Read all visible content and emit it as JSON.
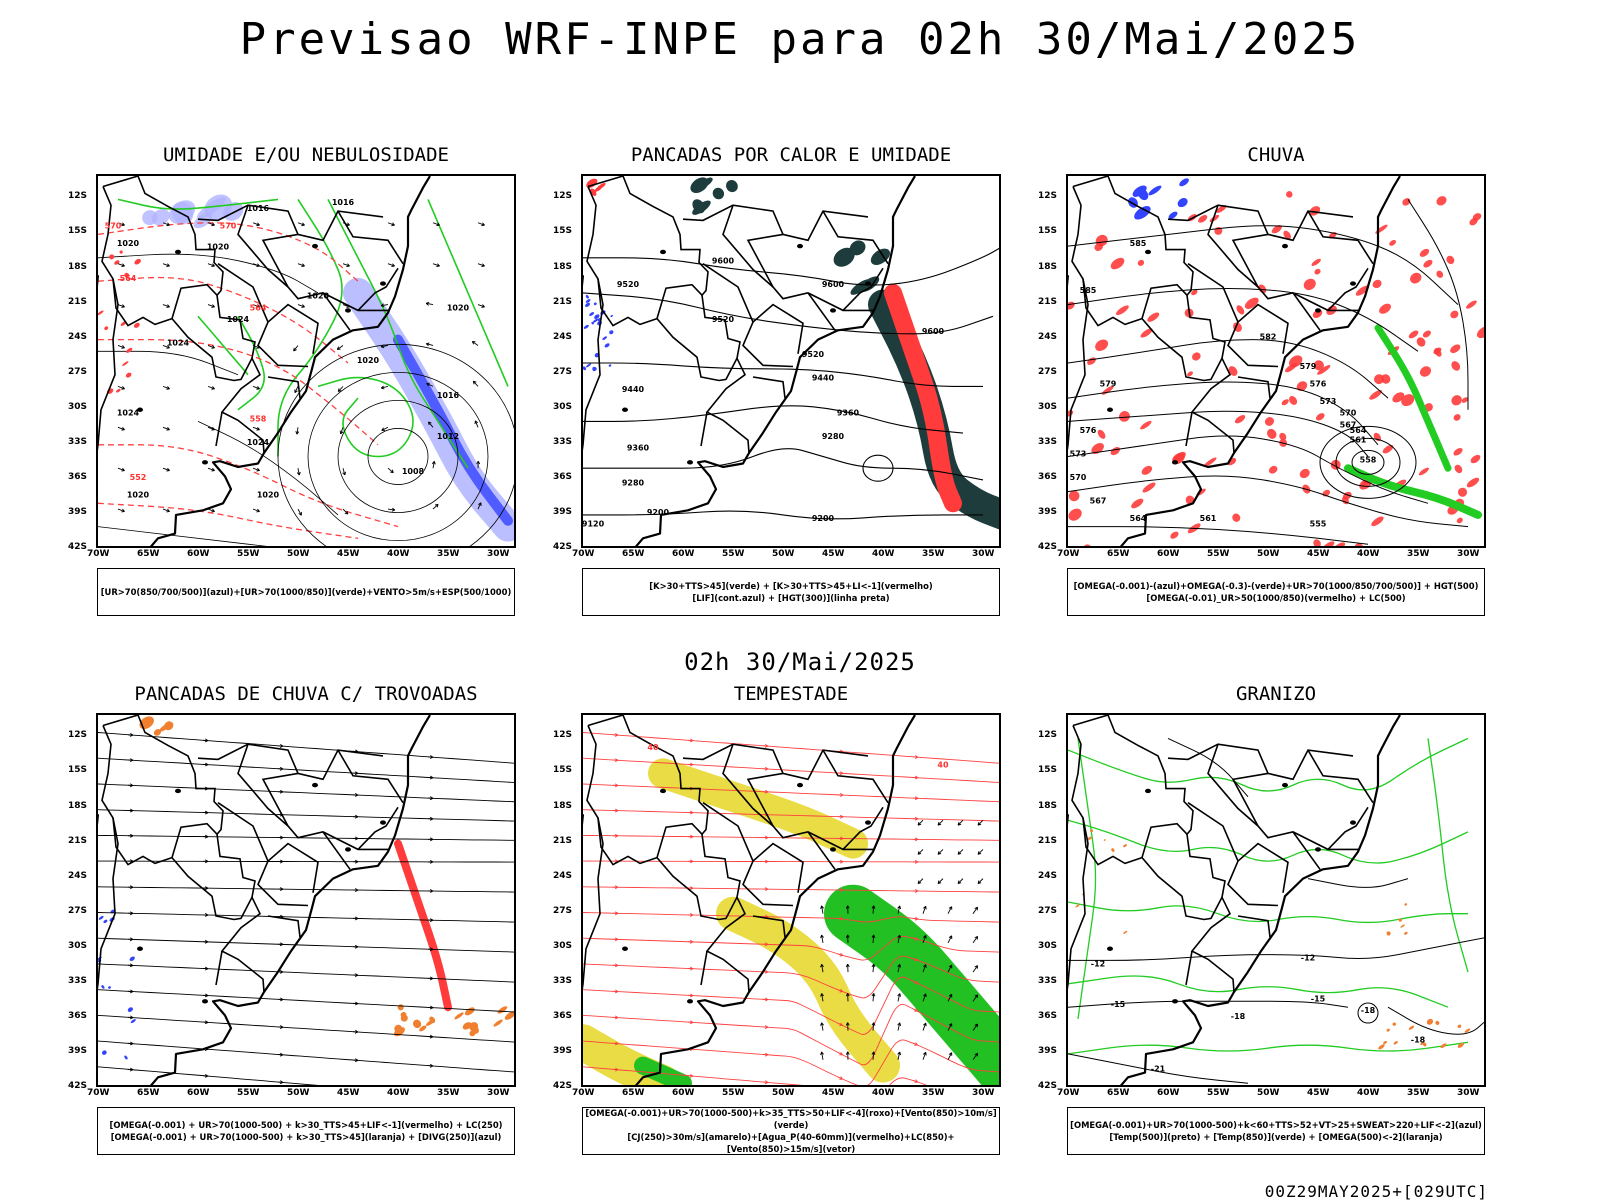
{
  "title": "Previsao WRF-INPE  para 02h 30/Mai/2025",
  "subtitle": "02h 30/Mai/2025",
  "footer": "00Z29MAY2025+[029UTC]",
  "axes": {
    "lat_labels": [
      "12S",
      "15S",
      "18S",
      "21S",
      "24S",
      "27S",
      "30S",
      "33S",
      "36S",
      "39S",
      "42S"
    ],
    "lon_labels": [
      "70W",
      "65W",
      "60W",
      "55W",
      "50W",
      "45W",
      "40W",
      "35W",
      "30W"
    ]
  },
  "colors": {
    "red": "#ff3b3b",
    "green": "#22cc22",
    "blue": "#3344ff",
    "darkteal": "#1e3c3c",
    "yellow": "#e8d830",
    "orange": "#f08030",
    "lavender": "#b0b4ff"
  },
  "panels": [
    {
      "title": "UMIDADE E/OU NEBULOSIDADE",
      "legend": [
        "[UR>70(850/700/500)](azul)+[UR>70(1000/850)](verde)+VENTO>5m/s+ESP(500/1000)"
      ],
      "labels": [
        {
          "t": "1016",
          "c": "black",
          "lon": -45.5,
          "lat": -12.5
        },
        {
          "t": "1016",
          "c": "black",
          "lon": -54,
          "lat": -13
        },
        {
          "t": "1020",
          "c": "black",
          "lon": -67,
          "lat": -16
        },
        {
          "t": "1020",
          "c": "black",
          "lon": -58,
          "lat": -16.3
        },
        {
          "t": "1020",
          "c": "black",
          "lon": -48,
          "lat": -20.5
        },
        {
          "t": "1020",
          "c": "black",
          "lon": -34,
          "lat": -21.5
        },
        {
          "t": "1024",
          "c": "black",
          "lon": -56,
          "lat": -22.5
        },
        {
          "t": "1024",
          "c": "black",
          "lon": -62,
          "lat": -24.5
        },
        {
          "t": "1020",
          "c": "black",
          "lon": -43,
          "lat": -26
        },
        {
          "t": "1016",
          "c": "black",
          "lon": -35,
          "lat": -29
        },
        {
          "t": "1012",
          "c": "black",
          "lon": -35,
          "lat": -32.5
        },
        {
          "t": "1024",
          "c": "black",
          "lon": -67,
          "lat": -30.5
        },
        {
          "t": "1024",
          "c": "black",
          "lon": -54,
          "lat": -33
        },
        {
          "t": "1008",
          "c": "black",
          "lon": -38.5,
          "lat": -35.5
        },
        {
          "t": "1020",
          "c": "black",
          "lon": -53,
          "lat": -37.5
        },
        {
          "t": "1020",
          "c": "black",
          "lon": -66,
          "lat": -37.5
        },
        {
          "t": "570",
          "c": "red",
          "lon": -68.5,
          "lat": -14.5
        },
        {
          "t": "570",
          "c": "red",
          "lon": -57,
          "lat": -14.5
        },
        {
          "t": "564",
          "c": "red",
          "lon": -54,
          "lat": -21.5
        },
        {
          "t": "564",
          "c": "red",
          "lon": -67,
          "lat": -19
        },
        {
          "t": "558",
          "c": "red",
          "lon": -54,
          "lat": -31
        },
        {
          "t": "552",
          "c": "red",
          "lon": -66,
          "lat": -36
        }
      ]
    },
    {
      "title": "PANCADAS POR CALOR E UMIDADE",
      "legend": [
        "[K>30+TTS>45](verde) + [K>30+TTS>45+LI<-1](vermelho)",
        "[LIF](cont.azul) + [HGT(300)](linha preta)"
      ],
      "labels": [
        {
          "t": "9600",
          "c": "black",
          "lon": -56,
          "lat": -17.5
        },
        {
          "t": "9520",
          "c": "black",
          "lon": -65.5,
          "lat": -19.5
        },
        {
          "t": "9600",
          "c": "black",
          "lon": -45,
          "lat": -19.5
        },
        {
          "t": "9520",
          "c": "black",
          "lon": -56,
          "lat": -22.5
        },
        {
          "t": "9600",
          "c": "black",
          "lon": -35,
          "lat": -23.5
        },
        {
          "t": "9520",
          "c": "black",
          "lon": -47,
          "lat": -25.5
        },
        {
          "t": "9440",
          "c": "black",
          "lon": -65,
          "lat": -28.5
        },
        {
          "t": "9440",
          "c": "black",
          "lon": -46,
          "lat": -27.5
        },
        {
          "t": "9360",
          "c": "black",
          "lon": -64.5,
          "lat": -33.5
        },
        {
          "t": "9360",
          "c": "black",
          "lon": -43.5,
          "lat": -30.5
        },
        {
          "t": "9280",
          "c": "black",
          "lon": -45,
          "lat": -32.5
        },
        {
          "t": "9280",
          "c": "black",
          "lon": -65,
          "lat": -36.5
        },
        {
          "t": "9200",
          "c": "black",
          "lon": -62.5,
          "lat": -39
        },
        {
          "t": "9200",
          "c": "black",
          "lon": -46,
          "lat": -39.5
        },
        {
          "t": "9120",
          "c": "black",
          "lon": -69,
          "lat": -40
        }
      ]
    },
    {
      "title": "CHUVA",
      "legend": [
        "[OMEGA(-0.001)-(azul)+OMEGA(-0.3)-(verde)+UR>70(1000/850/700/500)] + HGT(500)",
        "[OMEGA(-0.01)_UR>50(1000/850)(vermelho) + LC(500)"
      ],
      "labels": [
        {
          "t": "585",
          "c": "black",
          "lon": -63,
          "lat": -16
        },
        {
          "t": "585",
          "c": "black",
          "lon": -68,
          "lat": -20
        },
        {
          "t": "582",
          "c": "black",
          "lon": -50,
          "lat": -24
        },
        {
          "t": "579",
          "c": "black",
          "lon": -46,
          "lat": -26.5
        },
        {
          "t": "576",
          "c": "black",
          "lon": -45,
          "lat": -28
        },
        {
          "t": "573",
          "c": "black",
          "lon": -44,
          "lat": -29.5
        },
        {
          "t": "570",
          "c": "black",
          "lon": -42,
          "lat": -30.5
        },
        {
          "t": "567",
          "c": "black",
          "lon": -42,
          "lat": -31.5
        },
        {
          "t": "564",
          "c": "black",
          "lon": -41,
          "lat": -32
        },
        {
          "t": "561",
          "c": "black",
          "lon": -41,
          "lat": -32.8
        },
        {
          "t": "558",
          "c": "black",
          "lon": -40,
          "lat": -34.5
        },
        {
          "t": "555",
          "c": "black",
          "lon": -45,
          "lat": -40
        },
        {
          "t": "561",
          "c": "black",
          "lon": -56,
          "lat": -39.5
        },
        {
          "t": "564",
          "c": "black",
          "lon": -63,
          "lat": -39.5
        },
        {
          "t": "567",
          "c": "black",
          "lon": -67,
          "lat": -38
        },
        {
          "t": "570",
          "c": "black",
          "lon": -69,
          "lat": -36
        },
        {
          "t": "573",
          "c": "black",
          "lon": -69,
          "lat": -34
        },
        {
          "t": "576",
          "c": "black",
          "lon": -68,
          "lat": -32
        },
        {
          "t": "579",
          "c": "black",
          "lon": -66,
          "lat": -28
        }
      ]
    },
    {
      "title": "PANCADAS DE CHUVA C/ TROVOADAS",
      "legend": [
        "[OMEGA(-0.001) + UR>70(1000-500) + k>30_TTS>45+LIF<-1](vermelho) + LC(250)",
        "[OMEGA(-0.001) + UR>70(1000-500) + k>30_TTS>45](laranja) + [DIVG(250)](azul)"
      ],
      "labels": []
    },
    {
      "title": "TEMPESTADE",
      "legend": [
        "[OMEGA(-0.001)+UR>70(1000-500)+k>35_TTS>50+LIF<-4](roxo)+[Vento(850)>10m/s](verde)",
        "[CJ(250)>30m/s](amarelo)+[Agua_P(40-60mm)](vermelho)+LC(850)+[Vento(850)>15m/s](vetor)"
      ],
      "labels": [
        {
          "t": "40",
          "c": "red",
          "lon": -63,
          "lat": -13
        },
        {
          "t": "40",
          "c": "red",
          "lon": -34,
          "lat": -14.5
        }
      ]
    },
    {
      "title": "GRANIZO",
      "legend": [
        "[OMEGA(-0.001)+UR>70(1000-500)+k<60+TTS>52+VT>25+SWEAT>220+LIF<-2](azul)",
        "[Temp(500)](preto) + [Temp(850)](verde) + [OMEGA(500)<-2](laranja)"
      ],
      "labels": [
        {
          "t": "-12",
          "c": "black",
          "lon": -67,
          "lat": -31.5
        },
        {
          "t": "-12",
          "c": "black",
          "lon": -46,
          "lat": -31
        },
        {
          "t": "-15",
          "c": "black",
          "lon": -65,
          "lat": -35
        },
        {
          "t": "-15",
          "c": "black",
          "lon": -45,
          "lat": -34.5
        },
        {
          "t": "-18",
          "c": "black",
          "lon": -53,
          "lat": -36
        },
        {
          "t": "-18",
          "c": "black",
          "lon": -40,
          "lat": -35.5
        },
        {
          "t": "-21",
          "c": "black",
          "lon": -61,
          "lat": -40.5
        },
        {
          "t": "-18",
          "c": "black",
          "lon": -35,
          "lat": -38
        }
      ]
    }
  ]
}
